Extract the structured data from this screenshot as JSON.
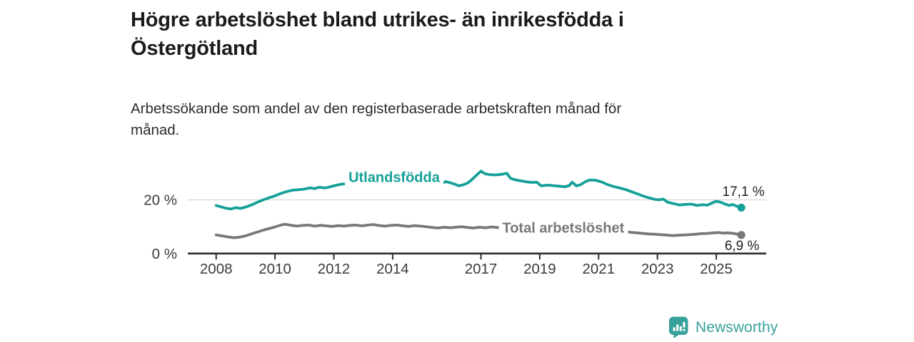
{
  "title": "Högre arbetslöshet bland utrikes- än inrikesfödda i Östergötland",
  "subtitle": "Arbetssökande som andel av den registerbaserade arbetskraften månad för månad.",
  "logo": {
    "brand": "Newsworthy",
    "icon": "newsworthy-bar-chart-bubble-icon"
  },
  "colors": {
    "teal": "#15A098",
    "gray": "#787878",
    "axis": "#2d2d2d",
    "grid": "#d6d6d6",
    "tick_text": "#3a3a3a",
    "value_text": "#1f1f1f",
    "logo_teal": "#38A09A"
  },
  "chart_data": {
    "type": "line",
    "unit": "%",
    "grid": "horizontal-20-only",
    "legend_position": "inline-on-lines",
    "x_axis": {
      "ticks": [
        2008,
        2010,
        2012,
        2014,
        2017,
        2019,
        2021,
        2023,
        2025
      ],
      "range": [
        2007.1,
        2026.7
      ]
    },
    "y_axis": {
      "ticks": [
        {
          "value": 20,
          "label": "20 %"
        },
        {
          "value": 0,
          "label": "0 %"
        }
      ],
      "range": [
        0,
        33
      ]
    },
    "series": [
      {
        "name": "Utlandsfödda",
        "color": "#15A098",
        "end_label": "17,1 %",
        "end_value": 17.1,
        "label_anchor": {
          "year": 2014.05,
          "value": 28.1
        },
        "points": [
          [
            2008.0,
            17.9
          ],
          [
            2008.17,
            17.4
          ],
          [
            2008.33,
            16.9
          ],
          [
            2008.5,
            16.6
          ],
          [
            2008.67,
            17.1
          ],
          [
            2008.83,
            16.8
          ],
          [
            2009.0,
            17.3
          ],
          [
            2009.2,
            18.1
          ],
          [
            2009.4,
            19.1
          ],
          [
            2009.6,
            20.0
          ],
          [
            2009.8,
            20.8
          ],
          [
            2010.0,
            21.5
          ],
          [
            2010.2,
            22.4
          ],
          [
            2010.4,
            23.1
          ],
          [
            2010.6,
            23.6
          ],
          [
            2010.8,
            23.8
          ],
          [
            2011.0,
            24.0
          ],
          [
            2011.2,
            24.5
          ],
          [
            2011.35,
            24.2
          ],
          [
            2011.5,
            24.7
          ],
          [
            2011.7,
            24.4
          ],
          [
            2011.85,
            24.8
          ],
          [
            2012.0,
            25.2
          ],
          [
            2012.15,
            25.6
          ],
          [
            2012.3,
            25.9
          ],
          [
            2012.6,
            26.1
          ],
          [
            2013.0,
            26.3
          ],
          [
            2013.4,
            26.6
          ],
          [
            2013.8,
            26.8
          ],
          [
            2014.2,
            27.0
          ],
          [
            2014.6,
            26.8
          ],
          [
            2015.0,
            26.7
          ],
          [
            2015.4,
            26.4
          ],
          [
            2015.7,
            26.3
          ],
          [
            2015.8,
            26.8
          ],
          [
            2015.95,
            26.4
          ],
          [
            2016.1,
            25.9
          ],
          [
            2016.25,
            25.2
          ],
          [
            2016.4,
            25.6
          ],
          [
            2016.55,
            26.3
          ],
          [
            2016.7,
            27.6
          ],
          [
            2016.85,
            29.2
          ],
          [
            2017.0,
            30.7
          ],
          [
            2017.15,
            29.7
          ],
          [
            2017.3,
            29.4
          ],
          [
            2017.5,
            29.3
          ],
          [
            2017.7,
            29.5
          ],
          [
            2017.88,
            29.9
          ],
          [
            2018.0,
            28.1
          ],
          [
            2018.15,
            27.5
          ],
          [
            2018.3,
            27.2
          ],
          [
            2018.5,
            26.8
          ],
          [
            2018.7,
            26.5
          ],
          [
            2018.9,
            26.6
          ],
          [
            2019.05,
            25.2
          ],
          [
            2019.25,
            25.5
          ],
          [
            2019.45,
            25.3
          ],
          [
            2019.65,
            25.1
          ],
          [
            2019.85,
            24.9
          ],
          [
            2020.0,
            25.3
          ],
          [
            2020.1,
            26.6
          ],
          [
            2020.25,
            25.2
          ],
          [
            2020.4,
            25.7
          ],
          [
            2020.55,
            26.8
          ],
          [
            2020.7,
            27.4
          ],
          [
            2020.9,
            27.3
          ],
          [
            2021.1,
            26.7
          ],
          [
            2021.3,
            25.7
          ],
          [
            2021.5,
            25.0
          ],
          [
            2021.7,
            24.5
          ],
          [
            2021.9,
            23.9
          ],
          [
            2022.1,
            23.1
          ],
          [
            2022.3,
            22.3
          ],
          [
            2022.5,
            21.5
          ],
          [
            2022.7,
            20.8
          ],
          [
            2022.9,
            20.2
          ],
          [
            2023.05,
            20.0
          ],
          [
            2023.2,
            20.3
          ],
          [
            2023.35,
            19.1
          ],
          [
            2023.55,
            18.6
          ],
          [
            2023.75,
            18.1
          ],
          [
            2023.95,
            18.3
          ],
          [
            2024.15,
            18.4
          ],
          [
            2024.35,
            17.9
          ],
          [
            2024.55,
            18.2
          ],
          [
            2024.7,
            18.0
          ],
          [
            2024.85,
            18.8
          ],
          [
            2025.0,
            19.5
          ],
          [
            2025.15,
            19.1
          ],
          [
            2025.3,
            18.4
          ],
          [
            2025.45,
            17.9
          ],
          [
            2025.55,
            18.3
          ],
          [
            2025.7,
            17.6
          ],
          [
            2025.85,
            17.1
          ]
        ]
      },
      {
        "name": "Total arbetslöshet",
        "color": "#787878",
        "end_label": "6,9 %",
        "end_value": 6.9,
        "label_anchor": {
          "year": 2019.8,
          "value": 9.25
        },
        "points": [
          [
            2008.0,
            6.9
          ],
          [
            2008.2,
            6.6
          ],
          [
            2008.4,
            6.2
          ],
          [
            2008.6,
            5.9
          ],
          [
            2008.8,
            6.1
          ],
          [
            2009.0,
            6.6
          ],
          [
            2009.2,
            7.3
          ],
          [
            2009.4,
            8.0
          ],
          [
            2009.6,
            8.7
          ],
          [
            2009.8,
            9.3
          ],
          [
            2010.0,
            9.9
          ],
          [
            2010.2,
            10.6
          ],
          [
            2010.35,
            10.9
          ],
          [
            2010.55,
            10.5
          ],
          [
            2010.75,
            10.2
          ],
          [
            2010.95,
            10.5
          ],
          [
            2011.15,
            10.6
          ],
          [
            2011.35,
            10.2
          ],
          [
            2011.55,
            10.5
          ],
          [
            2011.75,
            10.3
          ],
          [
            2011.95,
            10.1
          ],
          [
            2012.15,
            10.4
          ],
          [
            2012.35,
            10.2
          ],
          [
            2012.55,
            10.5
          ],
          [
            2012.75,
            10.6
          ],
          [
            2012.95,
            10.3
          ],
          [
            2013.15,
            10.6
          ],
          [
            2013.35,
            10.8
          ],
          [
            2013.55,
            10.4
          ],
          [
            2013.75,
            10.2
          ],
          [
            2013.95,
            10.5
          ],
          [
            2014.15,
            10.6
          ],
          [
            2014.35,
            10.3
          ],
          [
            2014.55,
            10.1
          ],
          [
            2014.75,
            10.4
          ],
          [
            2014.95,
            10.2
          ],
          [
            2015.15,
            10.0
          ],
          [
            2015.35,
            9.7
          ],
          [
            2015.55,
            9.5
          ],
          [
            2015.75,
            9.8
          ],
          [
            2015.95,
            9.6
          ],
          [
            2016.15,
            9.8
          ],
          [
            2016.35,
            10.0
          ],
          [
            2016.55,
            9.7
          ],
          [
            2016.75,
            9.5
          ],
          [
            2016.95,
            9.8
          ],
          [
            2017.15,
            9.6
          ],
          [
            2017.35,
            9.9
          ],
          [
            2017.55,
            9.7
          ],
          [
            2018.0,
            9.4
          ],
          [
            2018.5,
            9.2
          ],
          [
            2019.0,
            9.0
          ],
          [
            2019.5,
            8.8
          ],
          [
            2020.0,
            9.6
          ],
          [
            2020.4,
            10.4
          ],
          [
            2020.8,
            10.0
          ],
          [
            2021.3,
            9.2
          ],
          [
            2021.8,
            8.4
          ],
          [
            2022.1,
            7.9
          ],
          [
            2022.3,
            7.7
          ],
          [
            2022.5,
            7.5
          ],
          [
            2022.7,
            7.3
          ],
          [
            2022.9,
            7.2
          ],
          [
            2023.1,
            7.0
          ],
          [
            2023.3,
            6.9
          ],
          [
            2023.5,
            6.7
          ],
          [
            2023.7,
            6.8
          ],
          [
            2023.9,
            6.9
          ],
          [
            2024.1,
            7.0
          ],
          [
            2024.3,
            7.2
          ],
          [
            2024.5,
            7.4
          ],
          [
            2024.7,
            7.5
          ],
          [
            2024.9,
            7.7
          ],
          [
            2025.1,
            7.8
          ],
          [
            2025.25,
            7.6
          ],
          [
            2025.4,
            7.7
          ],
          [
            2025.6,
            7.5
          ],
          [
            2025.85,
            6.9
          ]
        ]
      }
    ]
  }
}
